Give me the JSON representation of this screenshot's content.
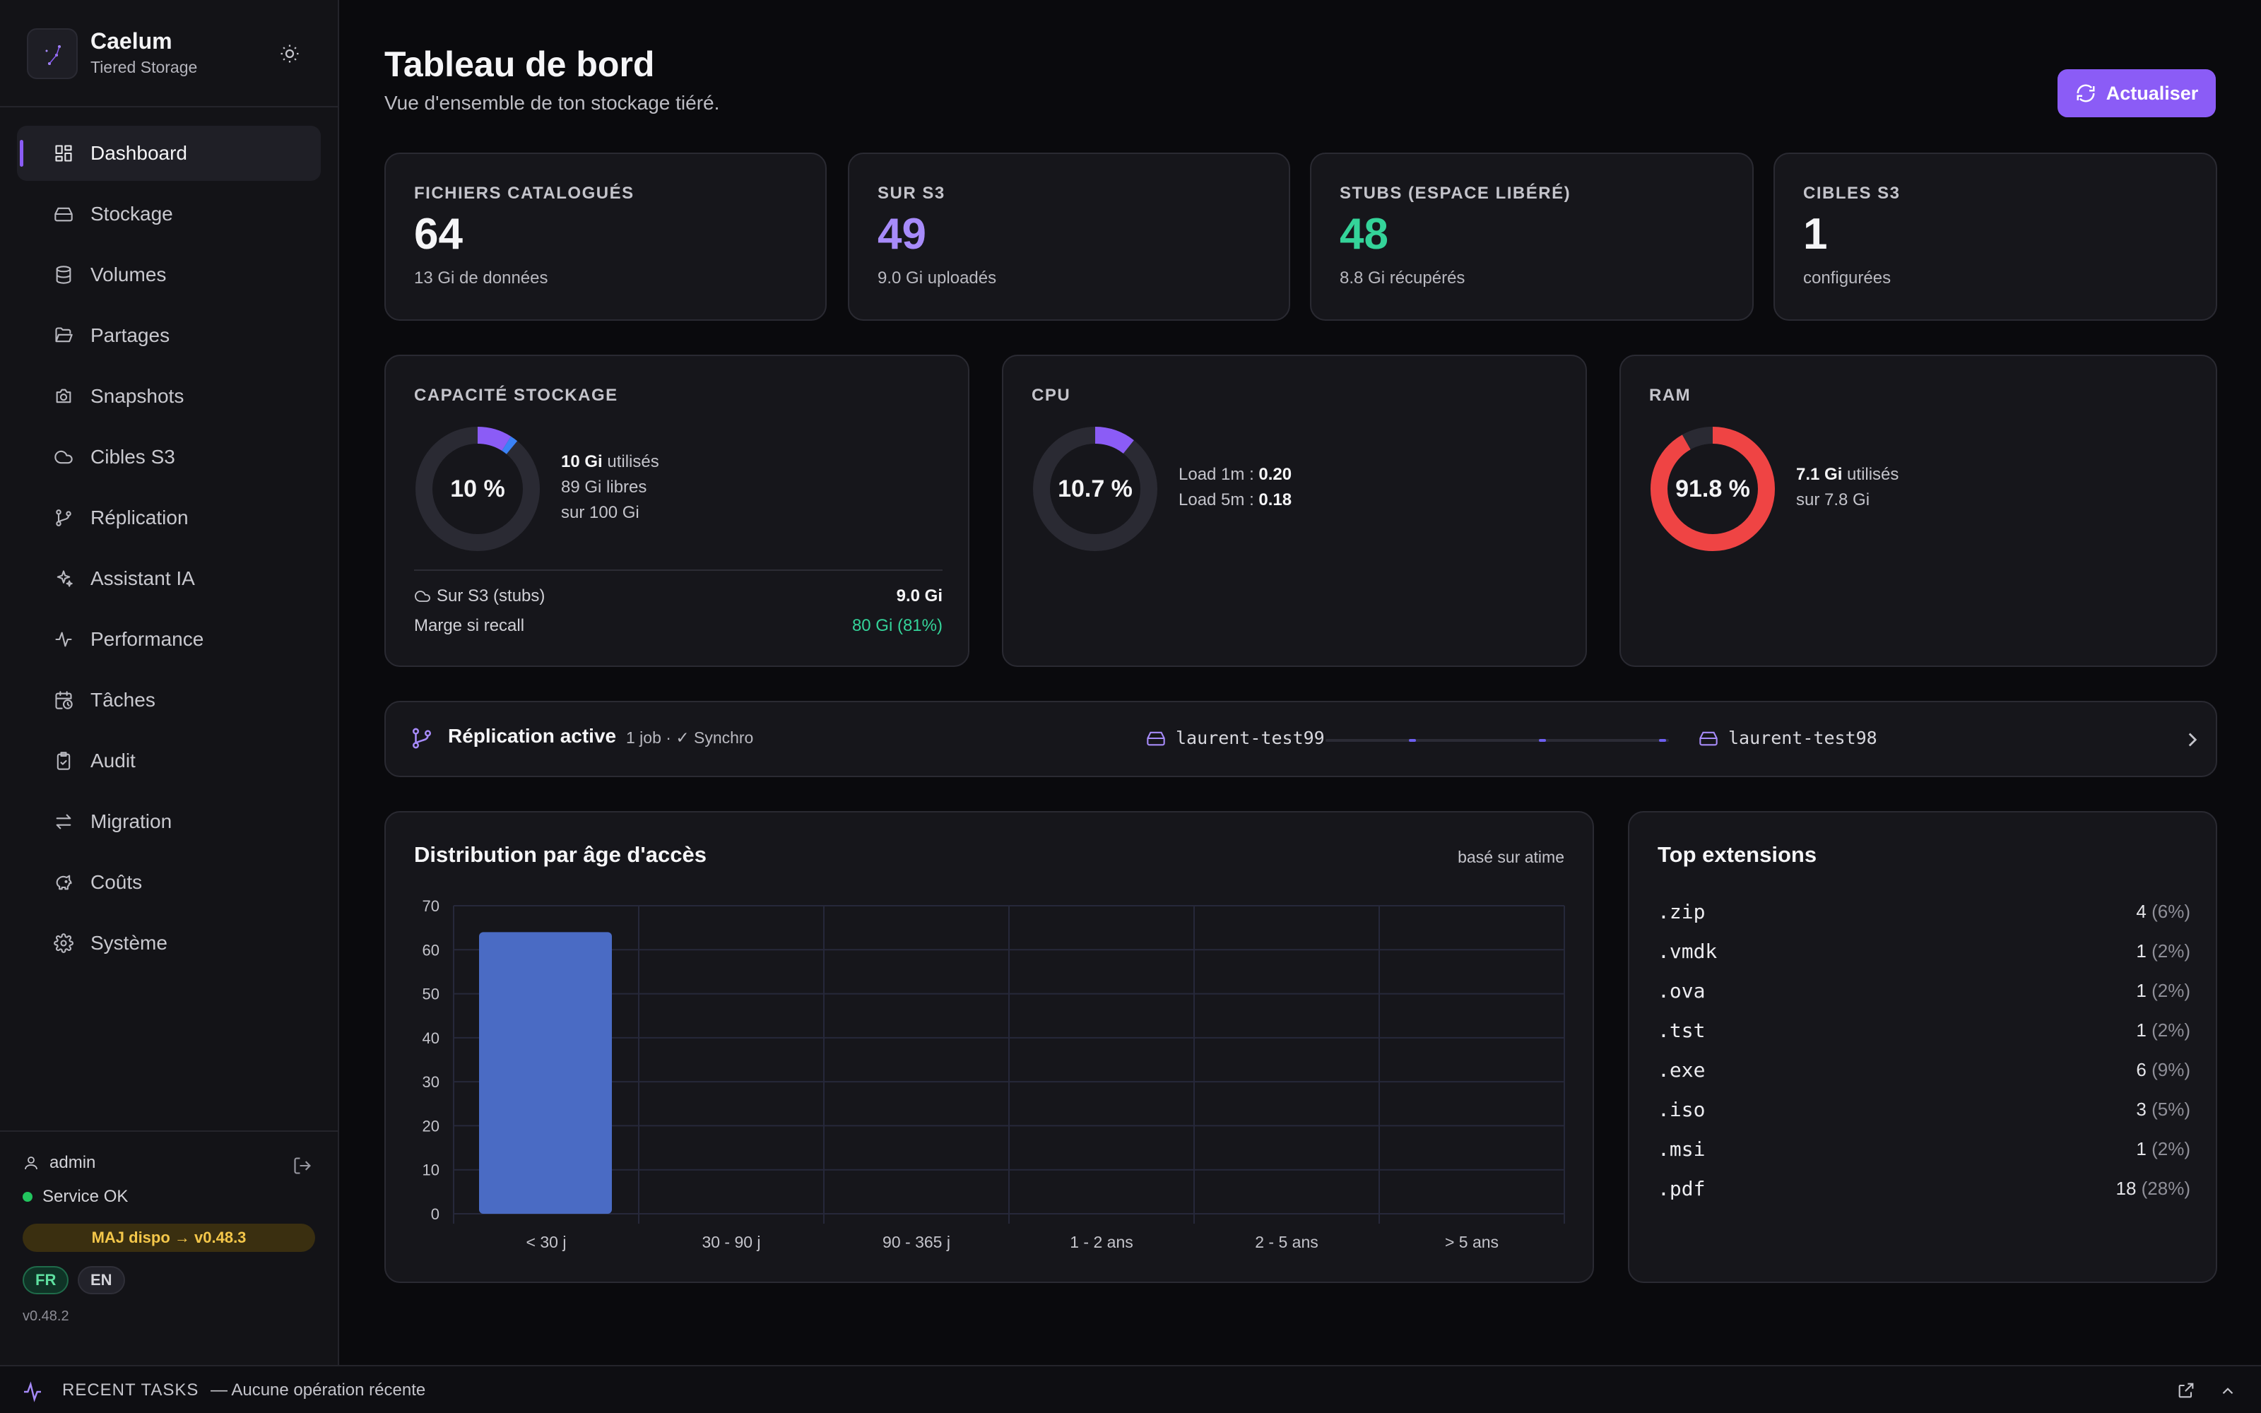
{
  "brand": {
    "name": "Caelum",
    "subtitle": "Tiered Storage"
  },
  "nav": [
    {
      "label": "Dashboard",
      "icon": "grid-icon",
      "active": true
    },
    {
      "label": "Stockage",
      "icon": "hard-drive-icon"
    },
    {
      "label": "Volumes",
      "icon": "database-icon"
    },
    {
      "label": "Partages",
      "icon": "folder-open-icon"
    },
    {
      "label": "Snapshots",
      "icon": "camera-icon"
    },
    {
      "label": "Cibles S3",
      "icon": "cloud-icon"
    },
    {
      "label": "Réplication",
      "icon": "git-branch-icon"
    },
    {
      "label": "Assistant IA",
      "icon": "sparkles-icon"
    },
    {
      "label": "Performance",
      "icon": "activity-icon"
    },
    {
      "label": "Tâches",
      "icon": "calendar-clock-icon"
    },
    {
      "label": "Audit",
      "icon": "clipboard-check-icon"
    },
    {
      "label": "Migration",
      "icon": "arrows-left-right-icon"
    },
    {
      "label": "Coûts",
      "icon": "piggy-bank-icon"
    },
    {
      "label": "Système",
      "icon": "gear-icon"
    }
  ],
  "footer": {
    "user": "admin",
    "service_status": "Service OK",
    "update_badge": "MAJ dispo → v0.48.3",
    "lang_fr": "FR",
    "lang_en": "EN",
    "version": "v0.48.2"
  },
  "header": {
    "title": "Tableau de bord",
    "subtitle": "Vue d'ensemble de ton stockage tiéré.",
    "refresh_label": "Actualiser"
  },
  "stats": [
    {
      "label": "FICHIERS CATALOGUÉS",
      "value": "64",
      "sub": "13 Gi de données",
      "color": "#f5f5f7"
    },
    {
      "label": "SUR S3",
      "value": "49",
      "sub": "9.0 Gi uploadés",
      "color": "#a78bfa"
    },
    {
      "label": "STUBS (ESPACE LIBÉRÉ)",
      "value": "48",
      "sub": "8.8 Gi récupérés",
      "color": "#34d399"
    },
    {
      "label": "CIBLES S3",
      "value": "1",
      "sub": "configurées",
      "color": "#f5f5f7"
    }
  ],
  "capacity": {
    "label": "CAPACITÉ STOCKAGE",
    "percent_text": "10 %",
    "percent": 10,
    "used_value": "10 Gi",
    "used_suffix": "utilisés",
    "free": "89 Gi libres",
    "total": "sur 100 Gi",
    "s3_label": "Sur S3 (stubs)",
    "s3_value": "9.0 Gi",
    "margin_label": "Marge si recall",
    "margin_value": "80 Gi (81%)"
  },
  "cpu": {
    "label": "CPU",
    "percent_text": "10.7 %",
    "percent": 10.7,
    "load1_label": "Load 1m :",
    "load1": "0.20",
    "load5_label": "Load 5m :",
    "load5": "0.18"
  },
  "ram": {
    "label": "RAM",
    "percent_text": "91.8 %",
    "percent": 91.8,
    "used_value": "7.1 Gi",
    "used_suffix": "utilisés",
    "total": "sur 7.8 Gi"
  },
  "replication": {
    "title": "Réplication active",
    "meta": "1 job · ✓ Synchro",
    "source": "laurent-test99",
    "target": "laurent-test98"
  },
  "chart_data": {
    "type": "bar",
    "title": "Distribution par âge d'accès",
    "note": "basé sur atime",
    "categories": [
      "< 30 j",
      "30 - 90 j",
      "90 - 365 j",
      "1 - 2 ans",
      "2 - 5 ans",
      "> 5 ans"
    ],
    "values": [
      64,
      0,
      0,
      0,
      0,
      0
    ],
    "ylim": [
      0,
      70
    ],
    "yticks": [
      0,
      10,
      20,
      30,
      40,
      50,
      60,
      70
    ],
    "grid": true,
    "color": "#4a6bc4"
  },
  "extensions": {
    "title": "Top extensions",
    "items": [
      {
        "name": ".zip",
        "count": "4",
        "pct": "(6%)"
      },
      {
        "name": ".vmdk",
        "count": "1",
        "pct": "(2%)"
      },
      {
        "name": ".ova",
        "count": "1",
        "pct": "(2%)"
      },
      {
        "name": ".tst",
        "count": "1",
        "pct": "(2%)"
      },
      {
        "name": ".exe",
        "count": "6",
        "pct": "(9%)"
      },
      {
        "name": ".iso",
        "count": "3",
        "pct": "(5%)"
      },
      {
        "name": ".msi",
        "count": "1",
        "pct": "(2%)"
      },
      {
        "name": ".pdf",
        "count": "18",
        "pct": "(28%)"
      }
    ]
  },
  "bottombar": {
    "label": "RECENT TASKS",
    "text": "— Aucune opération récente"
  }
}
